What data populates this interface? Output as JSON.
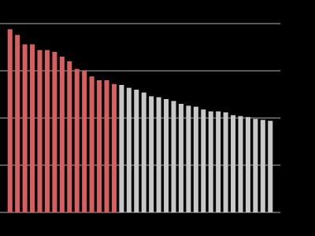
{
  "chart_data": {
    "type": "bar",
    "values": [
      97,
      94,
      89,
      89,
      86,
      86,
      85,
      82.5,
      80,
      76,
      75,
      72,
      70,
      70,
      68,
      67.5,
      66,
      65,
      63.5,
      61.5,
      61,
      60,
      59,
      57.5,
      56.5,
      56,
      54.5,
      53.5,
      53.5,
      53,
      51.5,
      51,
      50.5,
      49.5,
      49,
      48.5
    ],
    "colors": [
      "#d65f5f",
      "#d65f5f",
      "#d65f5f",
      "#d65f5f",
      "#d65f5f",
      "#d65f5f",
      "#d65f5f",
      "#d65f5f",
      "#d65f5f",
      "#d65f5f",
      "#d65f5f",
      "#d65f5f",
      "#d65f5f",
      "#d65f5f",
      "#d65f5f",
      "#c8c8c8",
      "#c8c8c8",
      "#c8c8c8",
      "#c8c8c8",
      "#c8c8c8",
      "#c8c8c8",
      "#c8c8c8",
      "#c8c8c8",
      "#c8c8c8",
      "#c8c8c8",
      "#c8c8c8",
      "#c8c8c8",
      "#c8c8c8",
      "#c8c8c8",
      "#c8c8c8",
      "#c8c8c8",
      "#c8c8c8",
      "#c8c8c8",
      "#c8c8c8",
      "#c8c8c8",
      "#c8c8c8"
    ],
    "ylim": [
      0,
      100
    ],
    "yticks": [
      0,
      25,
      50,
      75,
      100
    ],
    "grid": true,
    "grid_color": "#b0b0b0"
  }
}
